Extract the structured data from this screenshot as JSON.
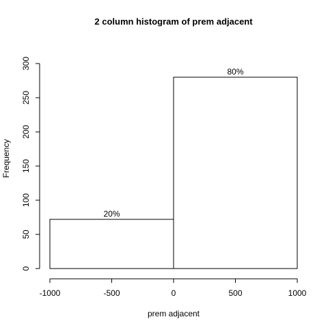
{
  "chart_data": {
    "type": "bar",
    "title": "2 column histogram of prem adjacent",
    "xlabel": "prem adjacent",
    "ylabel": "Frequency",
    "bins": [
      {
        "from": -1000,
        "to": 0,
        "value": 72,
        "label": "20%"
      },
      {
        "from": 0,
        "to": 1000,
        "value": 280,
        "label": "80%"
      }
    ],
    "xlim": [
      -1000,
      1000
    ],
    "ylim": [
      0,
      300
    ],
    "xticks": [
      -1000,
      -500,
      0,
      500,
      1000
    ],
    "yticks": [
      0,
      50,
      100,
      150,
      200,
      250,
      300
    ],
    "grid": false,
    "legend": "none",
    "colors": {
      "bar_fill": "#ffffff",
      "bar_stroke": "#000000"
    }
  }
}
